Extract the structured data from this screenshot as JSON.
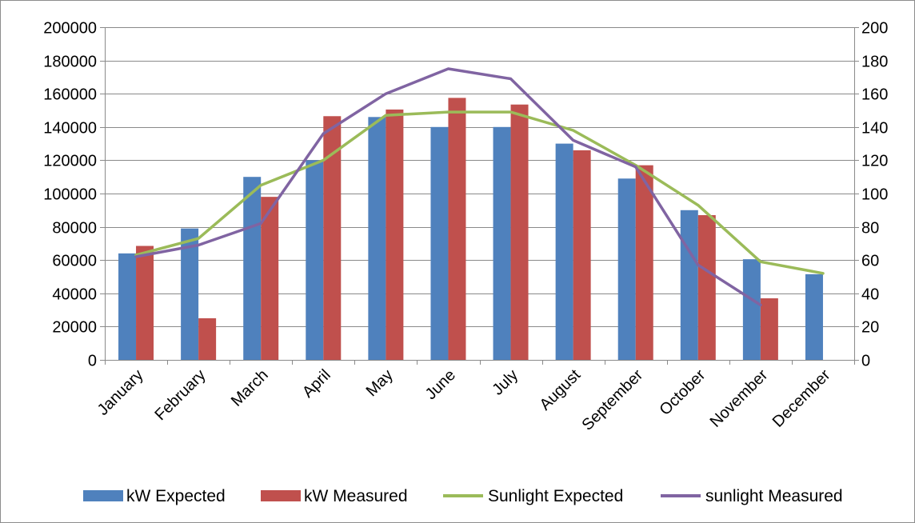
{
  "chart_data": {
    "type": "bar",
    "categories": [
      "January",
      "February",
      "March",
      "April",
      "May",
      "June",
      "July",
      "August",
      "September",
      "October",
      "November",
      "December"
    ],
    "series": [
      {
        "name": "kW Expected",
        "kind": "bar",
        "axis": "left",
        "color": "#4f81bd",
        "values": [
          64000,
          79000,
          110000,
          120000,
          146000,
          140000,
          140000,
          130000,
          109000,
          90000,
          60500,
          51500
        ]
      },
      {
        "name": "kW Measured",
        "kind": "bar",
        "axis": "left",
        "color": "#c0504d",
        "values": [
          68500,
          25000,
          98000,
          146500,
          150500,
          157500,
          153500,
          126000,
          117000,
          87000,
          37000,
          null
        ]
      },
      {
        "name": "Sunlight Expected",
        "kind": "line",
        "axis": "right",
        "color": "#9bbb59",
        "values": [
          63,
          73,
          105,
          120,
          147,
          149,
          149,
          138,
          117,
          93,
          59,
          52
        ]
      },
      {
        "name": "sunlight Measured",
        "kind": "line",
        "axis": "right",
        "color": "#8064a2",
        "values": [
          62,
          69,
          82,
          136,
          160,
          175,
          169,
          132,
          116,
          57,
          33,
          null
        ]
      }
    ],
    "y_left": {
      "min": 0,
      "max": 200000,
      "ticks": [
        0,
        20000,
        40000,
        60000,
        80000,
        100000,
        120000,
        140000,
        160000,
        180000,
        200000
      ]
    },
    "y_right": {
      "min": 0,
      "max": 200,
      "ticks": [
        0,
        20,
        40,
        60,
        80,
        100,
        120,
        140,
        160,
        180,
        200
      ]
    },
    "grid": "horizontal",
    "legend_position": "bottom",
    "title": "",
    "xlabel": "",
    "ylabel": ""
  }
}
